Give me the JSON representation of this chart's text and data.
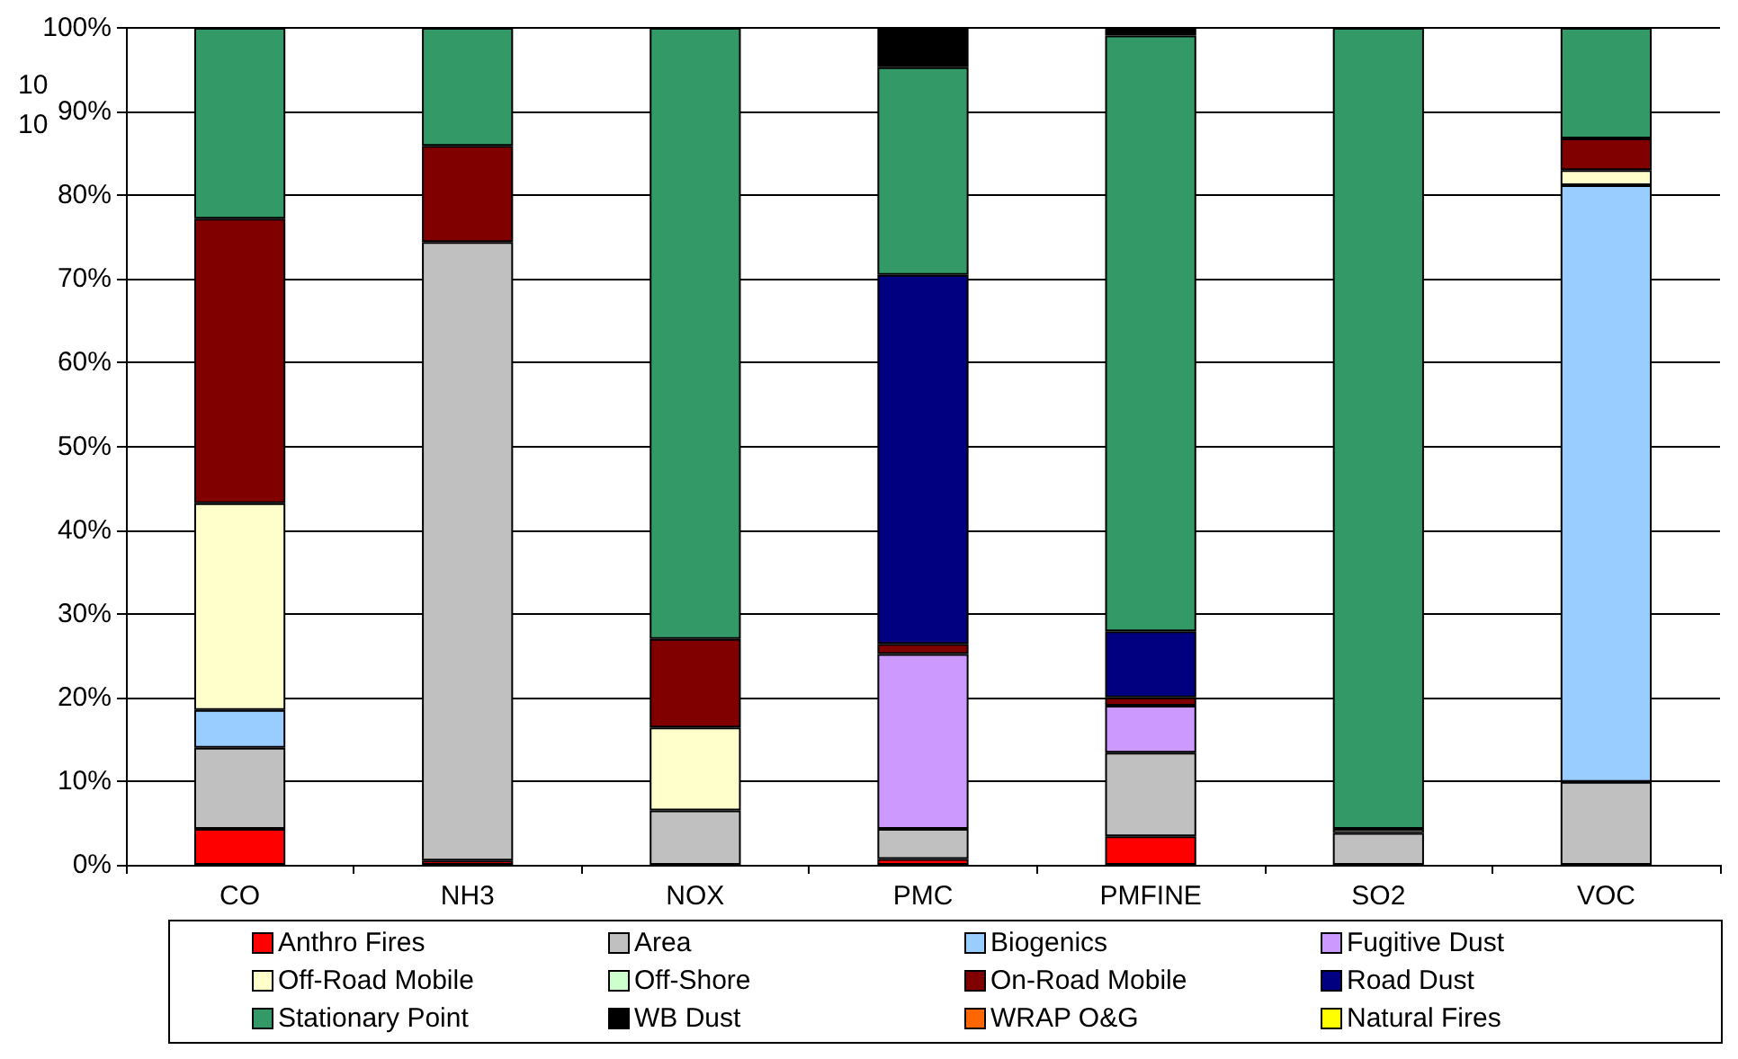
{
  "chart_data": {
    "type": "bar",
    "stacked": true,
    "categories": [
      "CO",
      "NH3",
      "NOX",
      "PMC",
      "PMFINE",
      "SO2",
      "VOC"
    ],
    "series": [
      {
        "name": "Anthro Fires",
        "color": "#ff0000",
        "values": [
          4.3,
          0.5,
          null,
          0.7,
          3.4,
          null,
          null
        ]
      },
      {
        "name": "Area",
        "color": "#c0c0c0",
        "values": [
          9.7,
          73.9,
          6.5,
          3.6,
          10.0,
          3.8,
          9.9
        ]
      },
      {
        "name": "Biogenics",
        "color": "#99ccff",
        "values": [
          4.5,
          null,
          null,
          null,
          null,
          null,
          71.3
        ]
      },
      {
        "name": "Fugitive Dust",
        "color": "#cc99ff",
        "values": [
          null,
          null,
          null,
          20.9,
          5.6,
          null,
          null
        ]
      },
      {
        "name": "Off-Road Mobile",
        "color": "#ffffcc",
        "values": [
          24.7,
          null,
          9.9,
          null,
          null,
          0.5,
          1.8
        ]
      },
      {
        "name": "Off-Shore",
        "color": "#ccffcc",
        "values": [
          null,
          null,
          null,
          null,
          null,
          null,
          null
        ]
      },
      {
        "name": "On-Road Mobile",
        "color": "#800000",
        "values": [
          34.0,
          11.5,
          10.6,
          1.2,
          1.0,
          null,
          3.8
        ]
      },
      {
        "name": "Road Dust",
        "color": "#000080",
        "values": [
          null,
          null,
          null,
          44.1,
          7.9,
          null,
          null
        ]
      },
      {
        "name": "Stationary Point",
        "color": "#339966",
        "values": [
          22.8,
          14.1,
          73.0,
          24.8,
          71.2,
          95.7,
          13.2
        ]
      },
      {
        "name": "WB Dust",
        "color": "#000000",
        "values": [
          null,
          null,
          null,
          4.7,
          0.9,
          null,
          null
        ]
      },
      {
        "name": "WRAP O&G",
        "color": "#ff6600",
        "values": [
          null,
          null,
          null,
          null,
          null,
          null,
          null
        ]
      },
      {
        "name": "Natural Fires",
        "color": "#ffff00",
        "values": [
          null,
          null,
          null,
          null,
          null,
          null,
          null
        ]
      }
    ],
    "ylim": [
      0,
      100
    ],
    "yticks": [
      {
        "value": 0,
        "label": "0%"
      },
      {
        "value": 10,
        "label": "10%"
      },
      {
        "value": 20,
        "label": "20%"
      },
      {
        "value": 30,
        "label": "30%"
      },
      {
        "value": 40,
        "label": "40%"
      },
      {
        "value": 50,
        "label": "50%"
      },
      {
        "value": 60,
        "label": "60%"
      },
      {
        "value": 70,
        "label": "70%"
      },
      {
        "value": 80,
        "label": "80%"
      },
      {
        "value": 90,
        "label": "90%"
      },
      {
        "value": 100,
        "label": "100%"
      }
    ],
    "grid": "y",
    "legend": "bottom",
    "annotations": [
      "10",
      "10"
    ]
  }
}
